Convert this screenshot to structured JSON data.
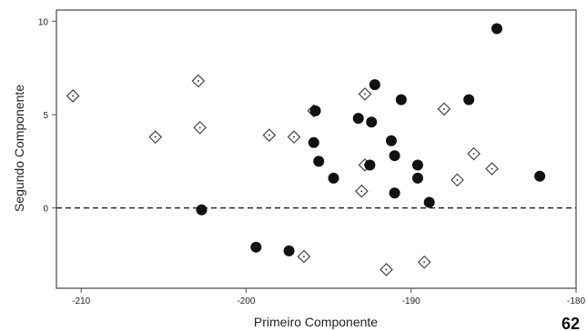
{
  "chart_data": {
    "type": "scatter",
    "title": "",
    "xlabel": "Primeiro Componente",
    "ylabel": "Segundo Componente",
    "xlim": [
      -211.5,
      -180
    ],
    "ylim": [
      -4.3,
      10.6
    ],
    "xticks": [
      -210,
      -200,
      -190,
      -180
    ],
    "yticks": [
      0,
      5,
      10
    ],
    "reference_line": {
      "y": 0,
      "style": "dashed"
    },
    "grid": false,
    "legend": "none",
    "series": [
      {
        "marker": "diamond-open-dot",
        "color": "#444444",
        "points": [
          [
            -210.5,
            6.0
          ],
          [
            -205.5,
            3.8
          ],
          [
            -202.9,
            6.8
          ],
          [
            -202.8,
            4.3
          ],
          [
            -198.6,
            3.9
          ],
          [
            -197.1,
            3.8
          ],
          [
            -196.5,
            -2.6
          ],
          [
            -195.9,
            5.2
          ],
          [
            -192.8,
            6.1
          ],
          [
            -192.8,
            2.3
          ],
          [
            -193.0,
            0.9
          ],
          [
            -191.5,
            -3.3
          ],
          [
            -189.2,
            -2.9
          ],
          [
            -188.0,
            5.3
          ],
          [
            -187.2,
            1.5
          ],
          [
            -186.2,
            2.9
          ],
          [
            -185.1,
            2.1
          ]
        ]
      },
      {
        "marker": "circle-filled",
        "color": "#111111",
        "points": [
          [
            -184.8,
            9.6
          ],
          [
            -192.2,
            6.6
          ],
          [
            -190.6,
            5.8
          ],
          [
            -186.5,
            5.8
          ],
          [
            -195.8,
            5.2
          ],
          [
            -193.2,
            4.8
          ],
          [
            -192.4,
            4.6
          ],
          [
            -191.2,
            3.6
          ],
          [
            -195.9,
            3.5
          ],
          [
            -191.0,
            2.8
          ],
          [
            -195.6,
            2.5
          ],
          [
            -192.5,
            2.3
          ],
          [
            -189.6,
            2.3
          ],
          [
            -194.7,
            1.6
          ],
          [
            -189.6,
            1.6
          ],
          [
            -182.2,
            1.7
          ],
          [
            -191.0,
            0.8
          ],
          [
            -188.9,
            0.3
          ],
          [
            -202.7,
            -0.1
          ],
          [
            -199.4,
            -2.1
          ],
          [
            -197.4,
            -2.3
          ]
        ]
      }
    ]
  },
  "page_number": "62"
}
